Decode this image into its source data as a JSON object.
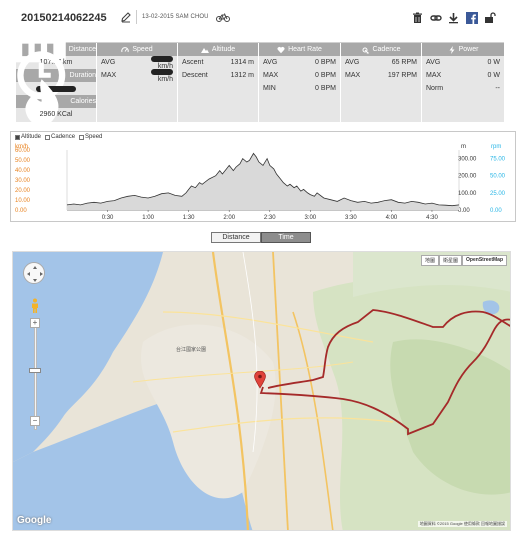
{
  "header": {
    "activity_id": "20150214062245",
    "meta": "13-02-2015 SAM CHOU",
    "tools": [
      "trash-icon",
      "link-icon",
      "download-icon",
      "facebook-icon",
      "lock-icon"
    ]
  },
  "stats": {
    "distance": {
      "label": "Distance",
      "value": "107.97 km"
    },
    "duration": {
      "label": "Duration"
    },
    "calories": {
      "label": "Calories",
      "value": "2960 KCal"
    },
    "speed": {
      "label": "Speed",
      "rows": [
        {
          "k": "AVG",
          "unit": "km/h"
        },
        {
          "k": "MAX",
          "unit": "km/h"
        }
      ]
    },
    "altitude": {
      "label": "Altitude",
      "rows": [
        {
          "k": "Ascent",
          "v": "1314 m"
        },
        {
          "k": "Descent",
          "v": "1312 m"
        }
      ]
    },
    "heart_rate": {
      "label": "Heart Rate",
      "rows": [
        {
          "k": "AVG",
          "v": "0 BPM"
        },
        {
          "k": "MAX",
          "v": "0 BPM"
        },
        {
          "k": "MIN",
          "v": "0 BPM"
        }
      ]
    },
    "cadence": {
      "label": "Cadence",
      "rows": [
        {
          "k": "AVG",
          "v": "65 RPM"
        },
        {
          "k": "MAX",
          "v": "197 RPM"
        }
      ]
    },
    "power": {
      "label": "Power",
      "rows": [
        {
          "k": "AVG",
          "v": "0 W"
        },
        {
          "k": "MAX",
          "v": "0 W"
        },
        {
          "k": "Norm",
          "v": "--"
        }
      ]
    }
  },
  "chart": {
    "legend": [
      "Altitude",
      "Cadence",
      "Speed"
    ],
    "legend_checked": [
      true,
      false,
      false
    ],
    "left_axis_label": "km/h",
    "middle_axis_label": "m",
    "right_axis_label": "rpm",
    "colors": {
      "speed": "#e8821f",
      "cadence": "#29b6e6",
      "altitude_fill": "#d9d9d9",
      "altitude_line": "#333333"
    }
  },
  "chart_data": {
    "type": "area",
    "title": "",
    "xlabel": "",
    "x_ticks": [
      "0:30",
      "1:00",
      "1:30",
      "2:00",
      "2:30",
      "3:00",
      "3:30",
      "4:00",
      "4:30"
    ],
    "x_tick_values": [
      30,
      60,
      90,
      120,
      150,
      180,
      210,
      240,
      270
    ],
    "xlim": [
      0,
      290
    ],
    "left_ticks": [
      "60.00",
      "50.00",
      "40.00",
      "30.00",
      "20.00",
      "10.00",
      "0.00"
    ],
    "left_ylim": [
      0,
      60
    ],
    "middle_ticks": [
      "300.00",
      "200.00",
      "100.00",
      "0.00"
    ],
    "middle_ylim": [
      0,
      350
    ],
    "right_ticks": [
      "75.00",
      "50.00",
      "25.00",
      "0.00"
    ],
    "right_ylim": [
      0,
      87.5
    ],
    "series": [
      {
        "name": "Altitude",
        "axis": "m",
        "x": [
          0,
          5,
          10,
          15,
          20,
          25,
          30,
          35,
          40,
          45,
          50,
          55,
          60,
          65,
          70,
          75,
          80,
          85,
          88,
          90,
          92,
          95,
          98,
          100,
          105,
          110,
          113,
          115,
          118,
          120,
          123,
          125,
          128,
          130,
          133,
          135,
          138,
          140,
          142,
          145,
          148,
          150,
          153,
          155,
          158,
          160,
          163,
          165,
          168,
          170,
          173,
          175,
          178,
          180,
          183,
          185,
          190,
          195,
          200,
          205,
          210,
          215,
          220,
          225,
          230,
          235,
          240,
          245,
          250,
          255,
          260,
          265,
          270,
          275,
          280,
          285,
          290
        ],
        "y": [
          30,
          35,
          30,
          40,
          45,
          40,
          50,
          55,
          70,
          80,
          85,
          75,
          70,
          80,
          95,
          100,
          85,
          80,
          100,
          120,
          140,
          130,
          160,
          150,
          180,
          200,
          230,
          210,
          240,
          260,
          230,
          250,
          270,
          300,
          280,
          290,
          330,
          310,
          280,
          260,
          300,
          260,
          240,
          210,
          180,
          160,
          140,
          150,
          130,
          140,
          110,
          120,
          100,
          90,
          80,
          100,
          70,
          60,
          50,
          70,
          55,
          45,
          50,
          40,
          45,
          55,
          60,
          45,
          40,
          50,
          45,
          35,
          40,
          30,
          28,
          25,
          30
        ]
      }
    ]
  },
  "toggle": {
    "distance": "Distance",
    "time": "Time",
    "active": "Time"
  },
  "map": {
    "map_types": [
      "地圖",
      "衛星圖",
      "OpenStreetMap"
    ],
    "active_type": "OpenStreetMap",
    "labels": [
      {
        "id": "park",
        "text": "台江國家公園"
      }
    ],
    "attribution": "地圖資料 ©2015 Google   使用條款   回報地圖錯誤",
    "google": "Google",
    "route_color": "#a52a2a",
    "marker_color": "#e0433a"
  }
}
